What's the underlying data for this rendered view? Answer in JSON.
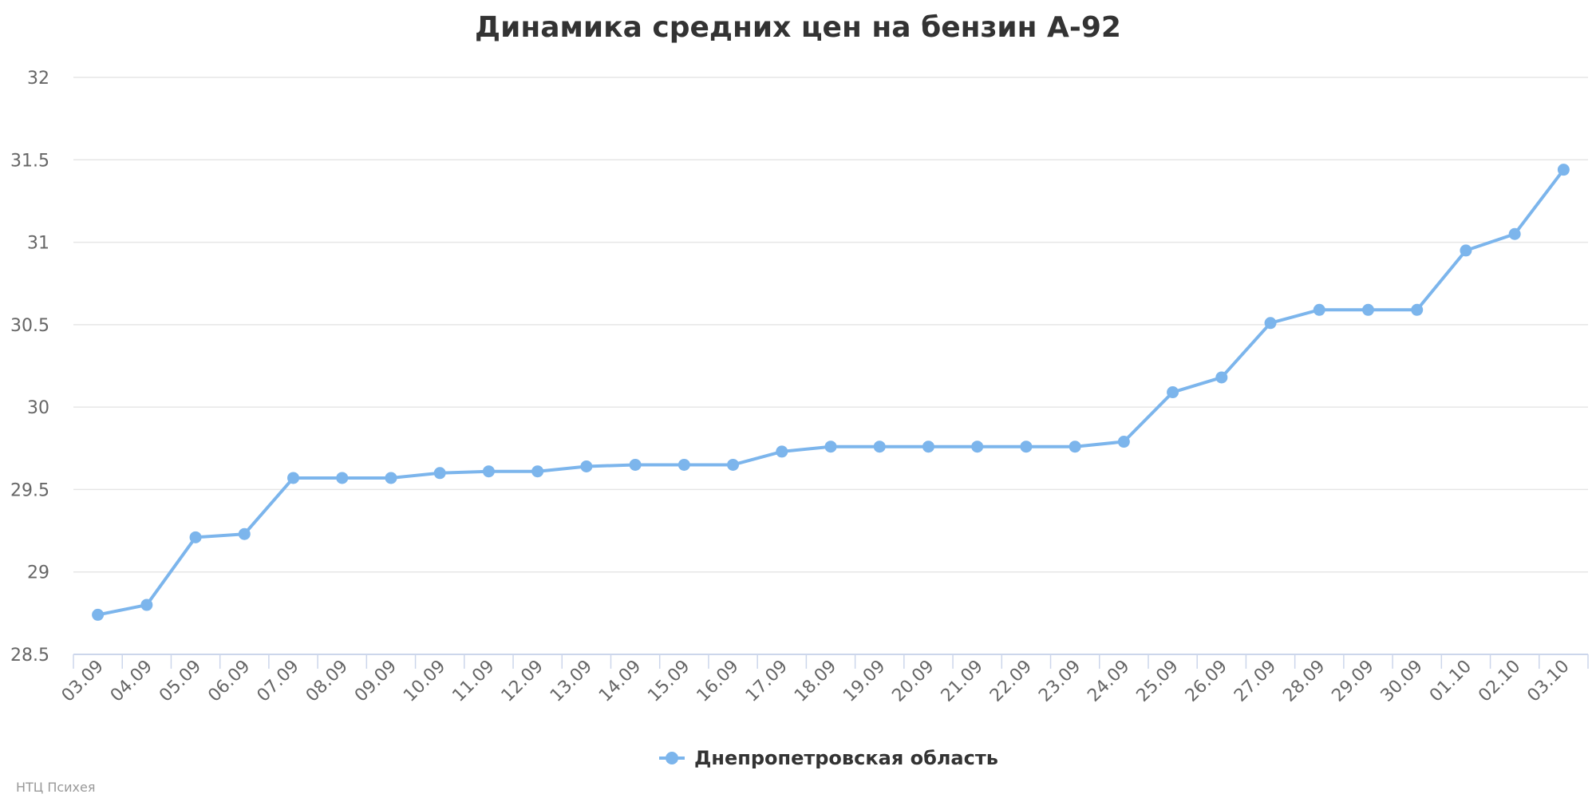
{
  "chart_data": {
    "type": "line",
    "title": "Динамика средних цен на бензин А-92",
    "xlabel": "",
    "ylabel": "",
    "categories": [
      "03.09",
      "04.09",
      "05.09",
      "06.09",
      "07.09",
      "08.09",
      "09.09",
      "10.09",
      "11.09",
      "12.09",
      "13.09",
      "14.09",
      "15.09",
      "16.09",
      "17.09",
      "18.09",
      "19.09",
      "20.09",
      "21.09",
      "22.09",
      "23.09",
      "24.09",
      "25.09",
      "26.09",
      "27.09",
      "28.09",
      "29.09",
      "30.09",
      "01.10",
      "02.10",
      "03.10"
    ],
    "series": [
      {
        "name": "Днепропетровская область",
        "color": "#7cb5ec",
        "values": [
          28.74,
          28.8,
          29.21,
          29.23,
          29.57,
          29.57,
          29.57,
          29.6,
          29.61,
          29.61,
          29.64,
          29.65,
          29.65,
          29.65,
          29.73,
          29.76,
          29.76,
          29.76,
          29.76,
          29.76,
          29.76,
          29.79,
          30.09,
          30.18,
          30.51,
          30.59,
          30.59,
          30.59,
          30.95,
          31.05,
          31.44
        ]
      }
    ],
    "ylim": [
      28.5,
      32
    ],
    "yticks": [
      "28.5",
      "29",
      "29.5",
      "30",
      "30.5",
      "31",
      "31.5",
      "32"
    ],
    "grid": true,
    "legend_position": "bottom-center",
    "credit": "НТЦ Психея"
  }
}
